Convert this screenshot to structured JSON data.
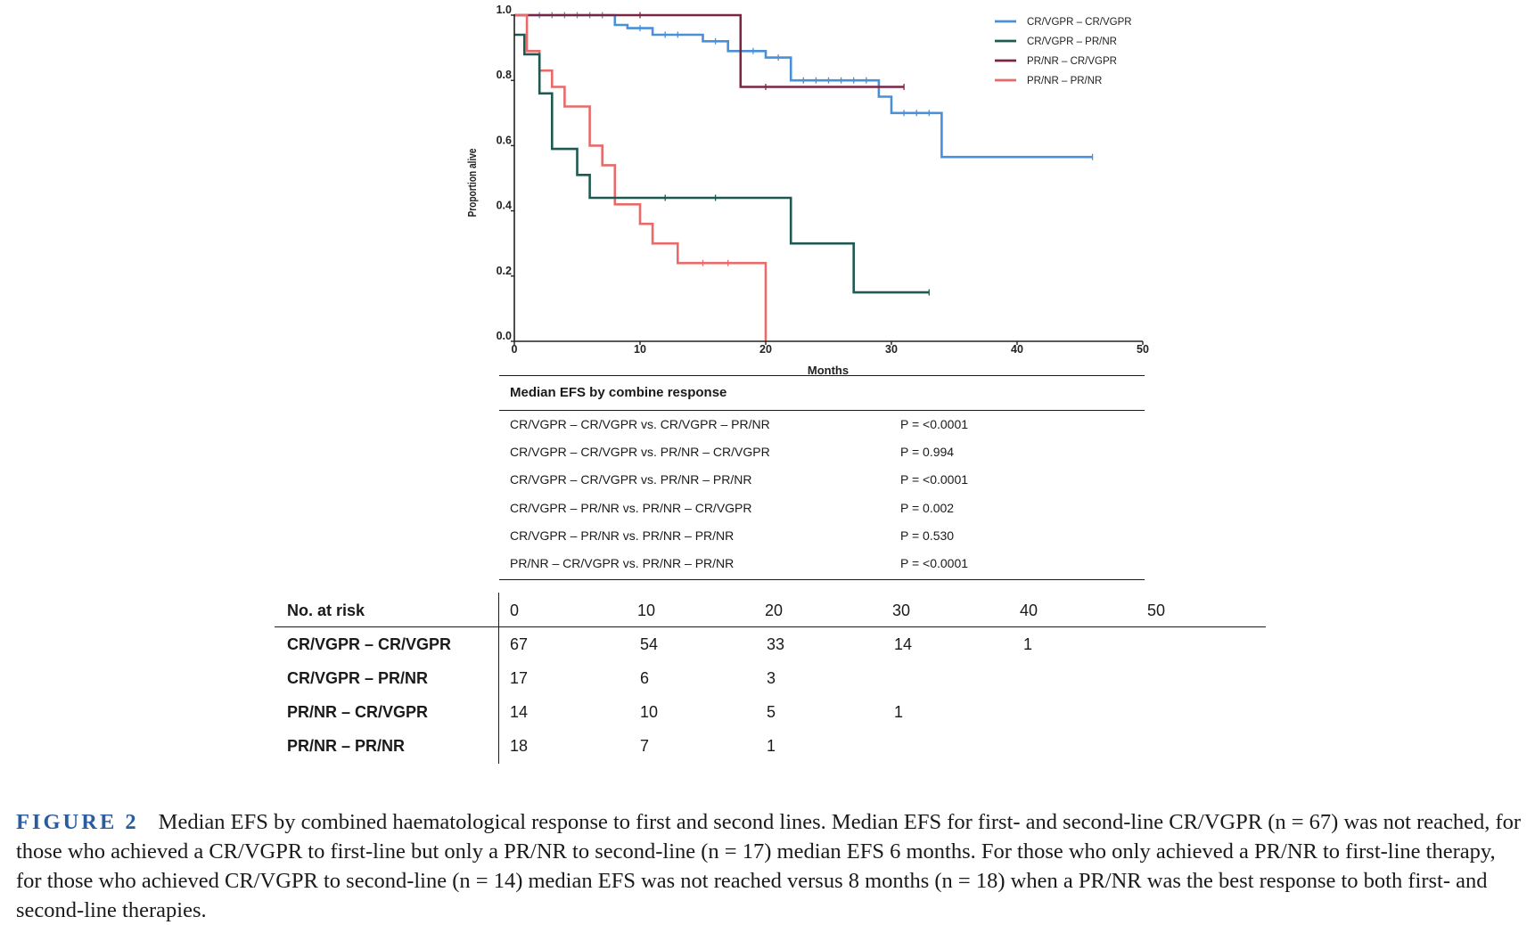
{
  "chart_data": {
    "type": "line",
    "subtype": "kaplan-meier",
    "xlabel": "Months",
    "ylabel": "Proportion alive",
    "xlim": [
      0,
      50
    ],
    "ylim": [
      0,
      1.0
    ],
    "x_ticks": [
      "0",
      "10",
      "20",
      "30",
      "40",
      "50"
    ],
    "y_ticks": [
      "0.0",
      "0.2",
      "0.4",
      "0.6",
      "0.8",
      "1.0"
    ],
    "grid": false,
    "legend_position": "top-right",
    "series": [
      {
        "name": "CR/VGPR – CR/VGPR",
        "color": "#4a90d9",
        "steps": [
          [
            0,
            1.0
          ],
          [
            8,
            1.0
          ],
          [
            8,
            0.97
          ],
          [
            9,
            0.97
          ],
          [
            9,
            0.96
          ],
          [
            11,
            0.96
          ],
          [
            11,
            0.94
          ],
          [
            15,
            0.94
          ],
          [
            15,
            0.92
          ],
          [
            17,
            0.92
          ],
          [
            17,
            0.89
          ],
          [
            20,
            0.89
          ],
          [
            20,
            0.87
          ],
          [
            22,
            0.87
          ],
          [
            22,
            0.8
          ],
          [
            29,
            0.8
          ],
          [
            29,
            0.75
          ],
          [
            30,
            0.75
          ],
          [
            30,
            0.7
          ],
          [
            34,
            0.7
          ],
          [
            34,
            0.565
          ],
          [
            46,
            0.565
          ]
        ],
        "censors": [
          [
            2,
            1.0
          ],
          [
            3,
            1.0
          ],
          [
            4,
            1.0
          ],
          [
            5,
            1.0
          ],
          [
            6,
            1.0
          ],
          [
            7,
            1.0
          ],
          [
            10,
            0.96
          ],
          [
            12,
            0.94
          ],
          [
            13,
            0.94
          ],
          [
            16,
            0.92
          ],
          [
            18,
            0.89
          ],
          [
            19,
            0.89
          ],
          [
            21,
            0.87
          ],
          [
            23,
            0.8
          ],
          [
            24,
            0.8
          ],
          [
            25,
            0.8
          ],
          [
            26,
            0.8
          ],
          [
            27,
            0.8
          ],
          [
            28,
            0.8
          ],
          [
            31,
            0.7
          ],
          [
            32,
            0.7
          ],
          [
            33,
            0.7
          ],
          [
            46,
            0.565
          ]
        ]
      },
      {
        "name": "CR/VGPR – PR/NR",
        "color": "#1f5a52",
        "steps": [
          [
            0,
            0.94
          ],
          [
            0.8,
            0.94
          ],
          [
            0.8,
            0.88
          ],
          [
            2,
            0.88
          ],
          [
            2,
            0.76
          ],
          [
            3,
            0.76
          ],
          [
            3,
            0.59
          ],
          [
            5,
            0.59
          ],
          [
            5,
            0.51
          ],
          [
            6,
            0.51
          ],
          [
            6,
            0.44
          ],
          [
            22,
            0.44
          ],
          [
            22,
            0.3
          ],
          [
            27,
            0.3
          ],
          [
            27,
            0.15
          ],
          [
            33,
            0.15
          ]
        ],
        "censors": [
          [
            12,
            0.44
          ],
          [
            16,
            0.44
          ],
          [
            33,
            0.15
          ]
        ]
      },
      {
        "name": "PR/NR – CR/VGPR",
        "color": "#7b2545",
        "steps": [
          [
            0,
            1.0
          ],
          [
            18,
            1.0
          ],
          [
            18,
            0.78
          ],
          [
            31,
            0.78
          ]
        ],
        "censors": [
          [
            10,
            1.0
          ],
          [
            20,
            0.78
          ],
          [
            31,
            0.78
          ]
        ]
      },
      {
        "name": "PR/NR – PR/NR",
        "color": "#e86a6a",
        "steps": [
          [
            0,
            1.0
          ],
          [
            1,
            1.0
          ],
          [
            1,
            0.89
          ],
          [
            2,
            0.89
          ],
          [
            2,
            0.83
          ],
          [
            3,
            0.83
          ],
          [
            3,
            0.78
          ],
          [
            4,
            0.78
          ],
          [
            4,
            0.72
          ],
          [
            6,
            0.72
          ],
          [
            6,
            0.6
          ],
          [
            7,
            0.6
          ],
          [
            7,
            0.54
          ],
          [
            8,
            0.54
          ],
          [
            8,
            0.42
          ],
          [
            10,
            0.42
          ],
          [
            10,
            0.36
          ],
          [
            11,
            0.36
          ],
          [
            11,
            0.3
          ],
          [
            13,
            0.3
          ],
          [
            13,
            0.24
          ],
          [
            20,
            0.24
          ],
          [
            20,
            0.0
          ]
        ],
        "censors": [
          [
            15,
            0.24
          ],
          [
            17,
            0.24
          ]
        ]
      }
    ]
  },
  "efs_table": {
    "title": "Median EFS by combine response",
    "rows": [
      {
        "comparison": "CR/VGPR – CR/VGPR vs. CR/VGPR – PR/NR",
        "p": "P = <0.0001"
      },
      {
        "comparison": "CR/VGPR – CR/VGPR vs. PR/NR – CR/VGPR",
        "p": "P = 0.994"
      },
      {
        "comparison": "CR/VGPR – CR/VGPR vs. PR/NR – PR/NR",
        "p": "P = <0.0001"
      },
      {
        "comparison": "CR/VGPR – PR/NR vs. PR/NR – CR/VGPR",
        "p": "P = 0.002"
      },
      {
        "comparison": "CR/VGPR – PR/NR vs. PR/NR – PR/NR",
        "p": "P = 0.530"
      },
      {
        "comparison": "PR/NR – CR/VGPR vs. PR/NR – PR/NR",
        "p": "P = <0.0001"
      }
    ]
  },
  "risk_table": {
    "header": "No. at risk",
    "times": [
      "0",
      "10",
      "20",
      "30",
      "40",
      "50"
    ],
    "rows": [
      {
        "label": "CR/VGPR – CR/VGPR",
        "values": [
          "67",
          "54",
          "33",
          "14",
          "1",
          ""
        ]
      },
      {
        "label": "CR/VGPR – PR/NR",
        "values": [
          "17",
          "6",
          "3",
          "",
          "",
          ""
        ]
      },
      {
        "label": "PR/NR – CR/VGPR",
        "values": [
          "14",
          "10",
          "5",
          "1",
          "",
          ""
        ]
      },
      {
        "label": "PR/NR – PR/NR",
        "values": [
          "18",
          "7",
          "1",
          "",
          "",
          ""
        ]
      }
    ]
  },
  "caption": {
    "label": "FIGURE 2",
    "text": "Median EFS by combined haematological response to first and second lines. Median EFS for first- and second-line CR/VGPR (n = 67) was not reached, for those who achieved a CR/VGPR to first-line but only a PR/NR to second-line (n = 17) median EFS 6 months. For those who only achieved a PR/NR to first-line therapy, for those who achieved CR/VGPR to second-line (n = 14) median EFS was not reached versus 8 months (n = 18) when a PR/NR was the best response to both first- and second-line therapies."
  }
}
